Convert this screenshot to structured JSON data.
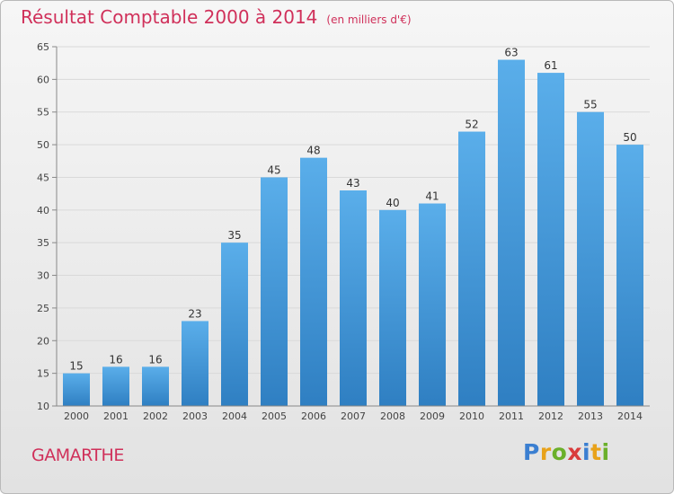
{
  "chart_data": {
    "type": "bar",
    "title": "Résultat Comptable 2000 à 2014",
    "subtitle": "(en milliers d'€)",
    "categories": [
      "2000",
      "2001",
      "2002",
      "2003",
      "2004",
      "2005",
      "2006",
      "2007",
      "2008",
      "2009",
      "2010",
      "2011",
      "2012",
      "2013",
      "2014"
    ],
    "values": [
      15,
      16,
      16,
      23,
      35,
      45,
      48,
      43,
      40,
      41,
      52,
      63,
      61,
      55,
      50
    ],
    "ylim": [
      10,
      65
    ],
    "yticks": [
      10,
      15,
      20,
      25,
      30,
      35,
      40,
      45,
      50,
      55,
      60,
      65
    ],
    "grid": true,
    "xlabel": "",
    "ylabel": "",
    "bar_color": "#3a8fd6"
  },
  "place": "GAMARTHE",
  "logo": {
    "letters": [
      "P",
      "r",
      "o",
      "x",
      "i",
      "t",
      "i"
    ],
    "colors": [
      "#3b7fd1",
      "#e8a21a",
      "#6bb02a",
      "#d93b3b",
      "#3b7fd1",
      "#e8a21a",
      "#6bb02a"
    ]
  },
  "colors": {
    "title": "#d0305a",
    "grid": "#d9d9d9",
    "axis": "#888888"
  }
}
